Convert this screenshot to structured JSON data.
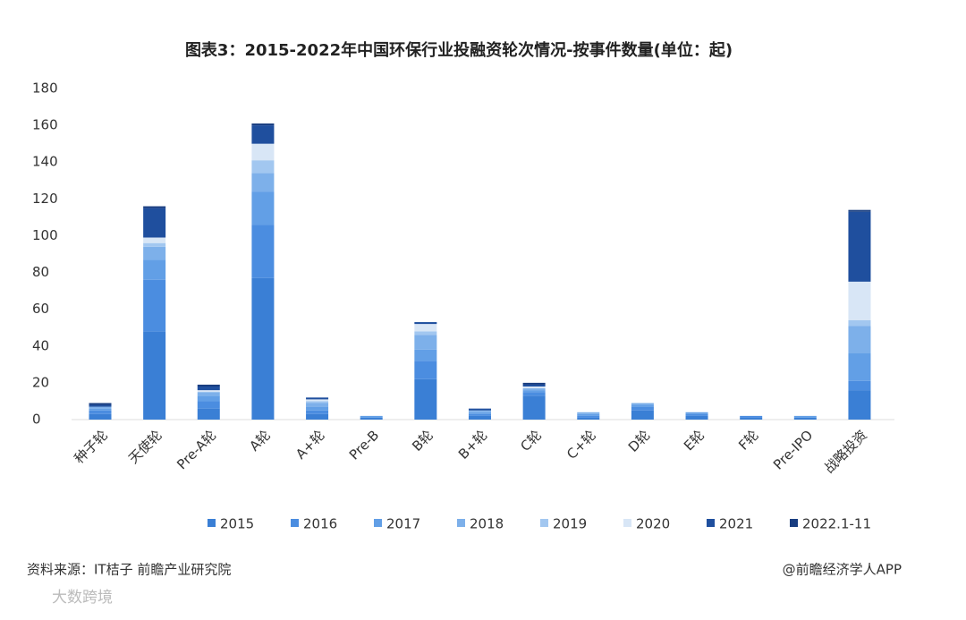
{
  "chart_data": {
    "type": "stacked_bar",
    "title": "图表3：2015-2022年中国环保行业投融资轮次情况-按事件数量(单位：起)",
    "categories": [
      "种子轮",
      "天使轮",
      "Pre-A轮",
      "A轮",
      "A+轮",
      "Pre-B",
      "B轮",
      "B+轮",
      "C轮",
      "C+轮",
      "D轮",
      "E轮",
      "F轮",
      "Pre-IPO",
      "战略投资"
    ],
    "series": [
      {
        "name": "2015",
        "color": "#3a7fd5",
        "values": [
          3,
          48,
          6,
          77,
          3,
          1,
          22,
          2,
          13,
          1,
          5,
          2,
          1,
          1,
          16
        ]
      },
      {
        "name": "2016",
        "color": "#4b8de0",
        "values": [
          2,
          28,
          4,
          29,
          2,
          0,
          10,
          1,
          2,
          1,
          2,
          1,
          1,
          0,
          5
        ]
      },
      {
        "name": "2017",
        "color": "#629fe6",
        "values": [
          1,
          11,
          3,
          18,
          2,
          1,
          6,
          1,
          1,
          1,
          1,
          1,
          0,
          1,
          15
        ]
      },
      {
        "name": "2018",
        "color": "#7db0ea",
        "values": [
          1,
          7,
          2,
          10,
          2,
          0,
          8,
          1,
          1,
          1,
          1,
          0,
          0,
          0,
          15
        ]
      },
      {
        "name": "2019",
        "color": "#a2c7f0",
        "values": [
          0,
          2,
          0,
          7,
          1,
          0,
          2,
          0,
          0,
          0,
          0,
          0,
          0,
          0,
          3
        ]
      },
      {
        "name": "2020",
        "color": "#d8e6f6",
        "values": [
          0,
          3,
          1,
          9,
          1,
          0,
          4,
          0,
          1,
          0,
          0,
          0,
          0,
          0,
          21
        ]
      },
      {
        "name": "2021",
        "color": "#1f4f9e",
        "values": [
          1,
          16,
          2,
          10,
          1,
          0,
          1,
          1,
          1,
          0,
          0,
          0,
          0,
          0,
          38
        ]
      },
      {
        "name": "2022.1-11",
        "color": "#183d80",
        "values": [
          1,
          1,
          1,
          1,
          0,
          0,
          0,
          0,
          1,
          0,
          0,
          0,
          0,
          0,
          1
        ]
      }
    ],
    "ylim": [
      0,
      180
    ],
    "yticks": [
      0,
      20,
      40,
      60,
      80,
      100,
      120,
      140,
      160,
      180
    ],
    "grid": false,
    "legend": "bottom",
    "source": "资料来源：IT桔子 前瞻产业研究院",
    "credit": "@前瞻经济学人APP",
    "watermark": "大数跨境"
  }
}
